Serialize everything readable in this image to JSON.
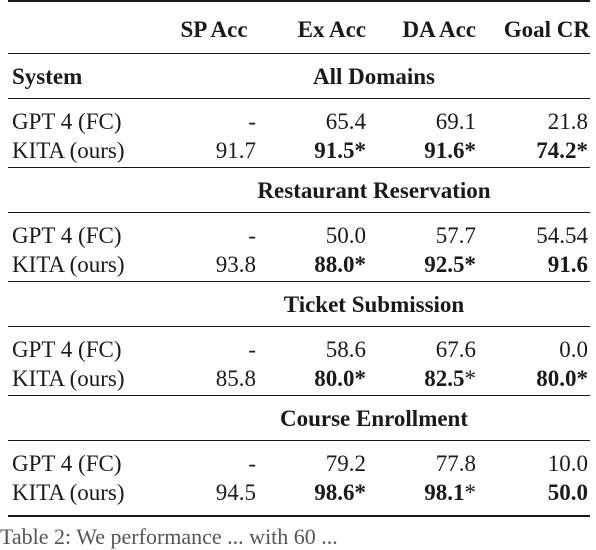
{
  "table": {
    "columns": [
      "SP Acc",
      "Ex Acc",
      "DA Acc",
      "Goal CR"
    ],
    "system_header": "System",
    "sections": [
      {
        "title": "All Domains",
        "rows": [
          {
            "system": "GPT 4 (FC)",
            "sp": "-",
            "ex": "65.4",
            "da": "69.1",
            "goal": "21.8"
          },
          {
            "system": "KITA (ours)",
            "sp": "91.7",
            "ex": "91.5*",
            "da": "91.6*",
            "goal": "74.2*"
          }
        ]
      },
      {
        "title": "Restaurant Reservation",
        "rows": [
          {
            "system": "GPT 4 (FC)",
            "sp": "-",
            "ex": "50.0",
            "da": "57.7",
            "goal": "54.54"
          },
          {
            "system": "KITA (ours)",
            "sp": "93.8",
            "ex": "88.0*",
            "da": "92.5*",
            "goal": "91.6"
          }
        ]
      },
      {
        "title": "Ticket Submission",
        "rows": [
          {
            "system": "GPT 4 (FC)",
            "sp": "-",
            "ex": "58.6",
            "da": "67.6",
            "goal": "0.0"
          },
          {
            "system": "KITA (ours)",
            "sp": "85.8",
            "ex": "80.0*",
            "da": "82.5",
            "da_star": "*",
            "goal": "80.0*"
          }
        ]
      },
      {
        "title": "Course Enrollment",
        "rows": [
          {
            "system": "GPT 4 (FC)",
            "sp": "-",
            "ex": "79.2",
            "da": "77.8",
            "goal": "10.0"
          },
          {
            "system": "KITA (ours)",
            "sp": "94.5",
            "ex": "98.6*",
            "da": "98.1",
            "da_star": "*",
            "goal": "50.0"
          }
        ]
      }
    ]
  },
  "caption": "Table 2: We performance ... with 60 ..."
}
